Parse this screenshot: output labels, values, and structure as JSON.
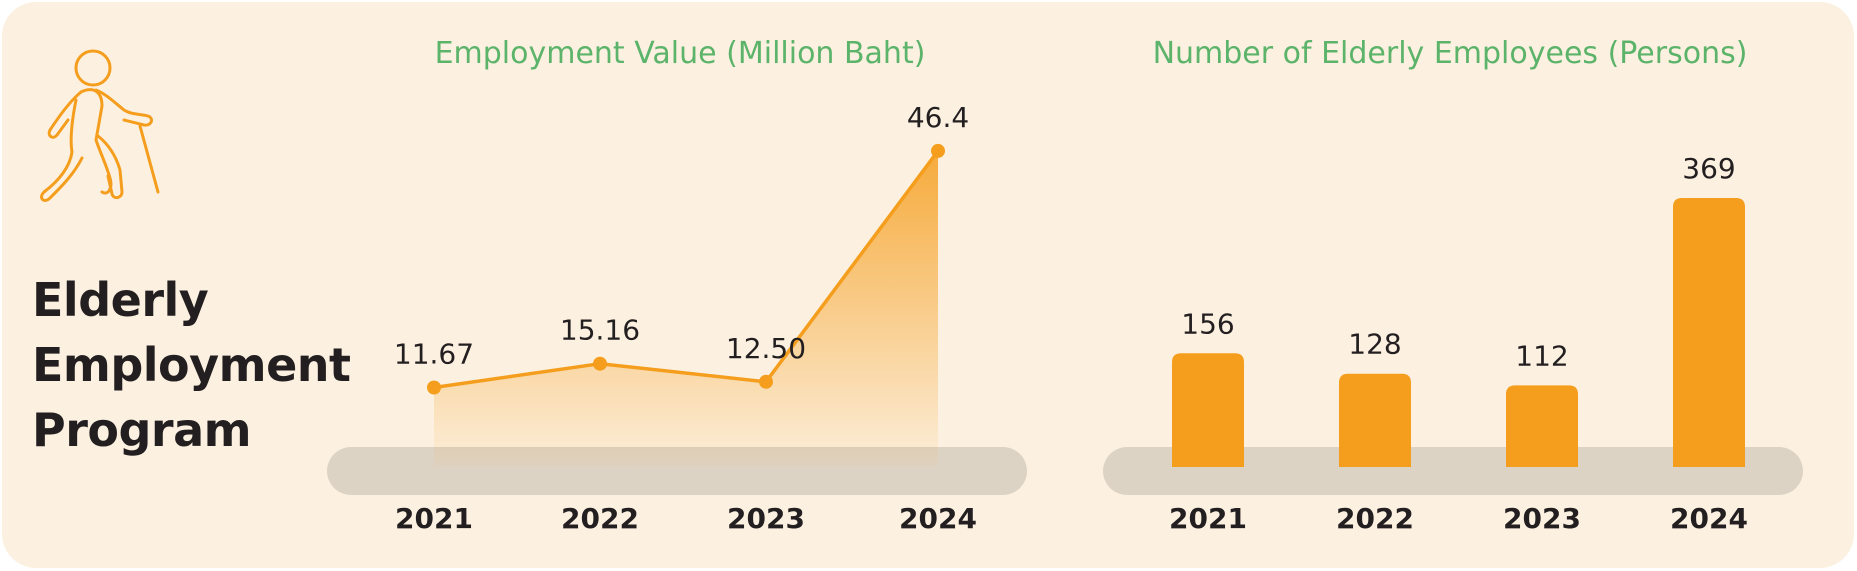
{
  "program": {
    "title_lines": [
      "Elderly",
      "Employment",
      "Program"
    ],
    "icon": "elderly-walking-cane-icon"
  },
  "colors": {
    "background": "#fcf1e1",
    "accent": "#f59e1e",
    "title_green": "#5cb36a",
    "baseline": "#ddd3c5",
    "text": "#231f20"
  },
  "chart_data": [
    {
      "type": "area",
      "title": "Employment Value (Million Baht)",
      "xlabel": "",
      "ylabel": "",
      "categories": [
        "2021",
        "2022",
        "2023",
        "2024"
      ],
      "values": [
        11.67,
        15.16,
        12.5,
        46.4
      ],
      "data_labels": [
        "11.67",
        "15.16",
        "12.50",
        "46.4"
      ],
      "ylim": [
        0,
        48
      ],
      "grid": false,
      "legend": "none"
    },
    {
      "type": "bar",
      "title": "Number of Elderly Employees (Persons)",
      "xlabel": "",
      "ylabel": "",
      "categories": [
        "2021",
        "2022",
        "2023",
        "2024"
      ],
      "values": [
        156,
        128,
        112,
        369
      ],
      "data_labels": [
        "156",
        "128",
        "112",
        "369"
      ],
      "ylim": [
        0,
        380
      ],
      "grid": false,
      "legend": "none"
    }
  ]
}
